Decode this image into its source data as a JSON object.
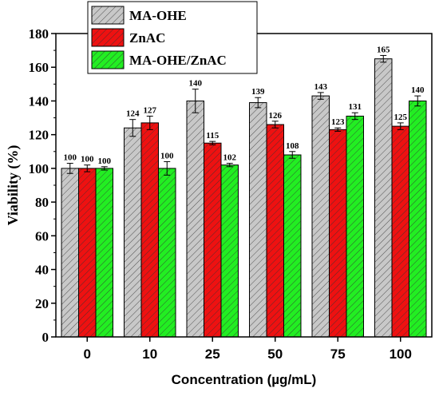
{
  "chart_data": {
    "type": "bar",
    "xlabel": "Concentration (µg/mL)",
    "ylabel": "Viability (%)",
    "ylim": [
      0,
      180
    ],
    "yticks": [
      0,
      20,
      40,
      60,
      80,
      100,
      120,
      140,
      160,
      180
    ],
    "categories": [
      "0",
      "10",
      "25",
      "50",
      "75",
      "100"
    ],
    "legend_position": "top-left",
    "error_bars": true,
    "series": [
      {
        "name": "MA-OHE",
        "color": "#c8c8c8",
        "pattern": "diagonal-hatch",
        "values": [
          100,
          124,
          140,
          139,
          143,
          165
        ],
        "errors": [
          3,
          5,
          7,
          3,
          2,
          2
        ],
        "labels": [
          "100",
          "124",
          "140",
          "139",
          "143",
          "165"
        ]
      },
      {
        "name": "ZnAC",
        "color": "#ee1111",
        "pattern": "diagonal-hatch",
        "values": [
          100,
          127,
          115,
          126,
          123,
          125
        ],
        "errors": [
          2,
          4,
          1,
          2,
          1,
          2
        ],
        "labels": [
          "100",
          "127",
          "115",
          "126",
          "123",
          "125"
        ]
      },
      {
        "name": "MA-OHE/ZnAC",
        "color": "#22ee22",
        "pattern": "diagonal-hatch",
        "values": [
          100,
          100,
          102,
          108,
          131,
          140
        ],
        "errors": [
          1,
          4,
          1,
          2,
          2,
          3
        ],
        "labels": [
          "100",
          "100",
          "102",
          "108",
          "131",
          "140"
        ]
      }
    ]
  }
}
